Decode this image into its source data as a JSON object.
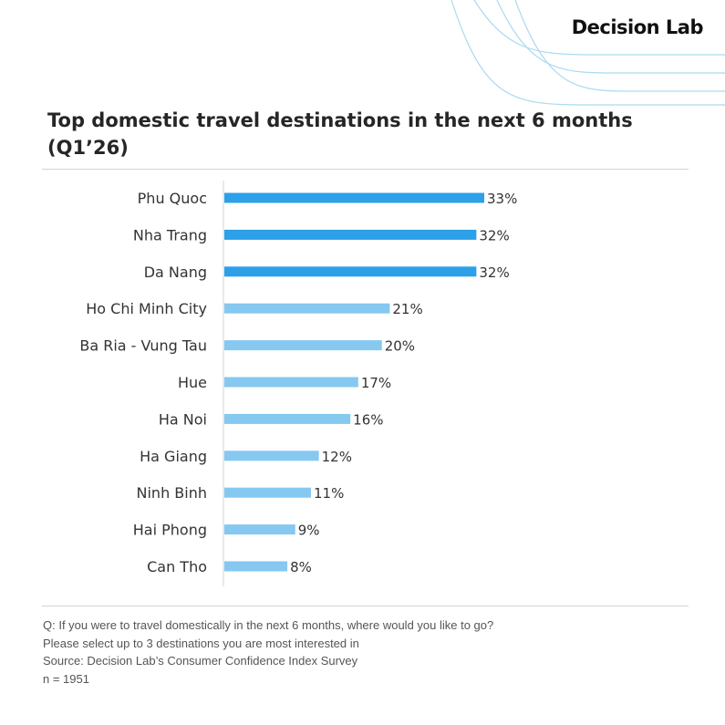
{
  "brand": {
    "name": "Decision Lab"
  },
  "colors": {
    "highlight_bar": "#2ca0e8",
    "regular_bar": "#85c8f0",
    "axis_line": "#d3d3d3",
    "decor_line": "#a9daf0"
  },
  "title": {
    "line1": "Top domestic travel destinations in the next 6 months",
    "line2": "(Q1’26)"
  },
  "chart_data": {
    "type": "bar",
    "orientation": "horizontal",
    "categories": [
      "Phu Quoc",
      "Nha Trang",
      "Da Nang",
      "Ho Chi Minh City",
      "Ba Ria - Vung Tau",
      "Hue",
      "Ha Noi",
      "Ha Giang",
      "Ninh Binh",
      "Hai Phong",
      "Can Tho"
    ],
    "values": [
      33,
      32,
      32,
      21,
      20,
      17,
      16,
      12,
      11,
      9,
      8
    ],
    "labels": [
      "33%",
      "32%",
      "32%",
      "21%",
      "20%",
      "17%",
      "16%",
      "12%",
      "11%",
      "9%",
      "8%"
    ],
    "highlighted": [
      true,
      true,
      true,
      false,
      false,
      false,
      false,
      false,
      false,
      false,
      false
    ],
    "unit": "%",
    "title": "Top domestic travel destinations in the next 6 months (Q1’26)",
    "xlabel": "",
    "ylabel": "",
    "xlim": [
      0,
      35
    ],
    "grid": false,
    "legend": "none"
  },
  "footnotes": {
    "question": "Q: If you were to travel domestically in the next 6 months, where would you like to go?",
    "instruction": "Please select up to 3 destinations you are most interested in",
    "source": "Source: Decision Lab’s Consumer Confidence Index Survey",
    "sample": "n = 1951"
  }
}
